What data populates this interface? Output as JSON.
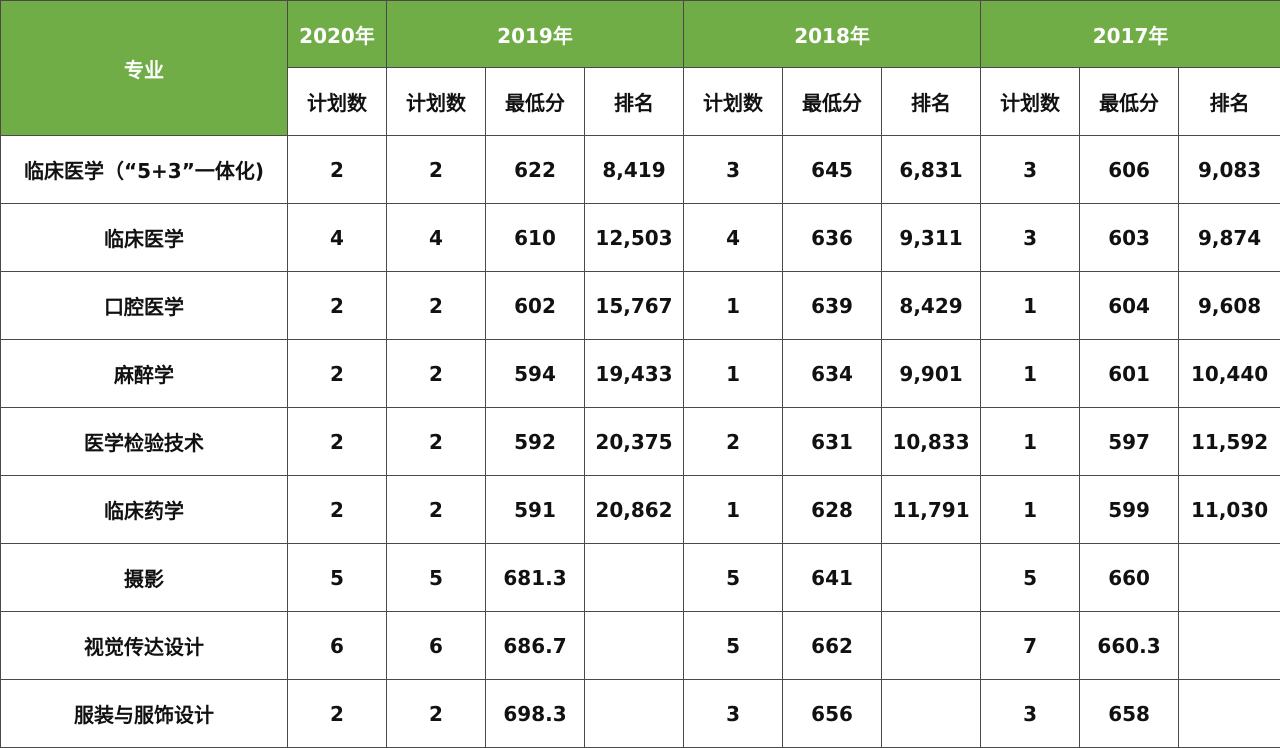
{
  "table": {
    "header_major": "专业",
    "years": [
      "2020年",
      "2019年",
      "2018年",
      "2017年"
    ],
    "sub_headers": {
      "plan": "计划数",
      "min_score": "最低分",
      "rank": "排名"
    },
    "rows": [
      [
        "临床医学（“5+3”一体化)",
        "2",
        "2",
        "622",
        "8,419",
        "3",
        "645",
        "6,831",
        "3",
        "606",
        "9,083"
      ],
      [
        "临床医学",
        "4",
        "4",
        "610",
        "12,503",
        "4",
        "636",
        "9,311",
        "3",
        "603",
        "9,874"
      ],
      [
        "口腔医学",
        "2",
        "2",
        "602",
        "15,767",
        "1",
        "639",
        "8,429",
        "1",
        "604",
        "9,608"
      ],
      [
        "麻醉学",
        "2",
        "2",
        "594",
        "19,433",
        "1",
        "634",
        "9,901",
        "1",
        "601",
        "10,440"
      ],
      [
        "医学检验技术",
        "2",
        "2",
        "592",
        "20,375",
        "2",
        "631",
        "10,833",
        "1",
        "597",
        "11,592"
      ],
      [
        "临床药学",
        "2",
        "2",
        "591",
        "20,862",
        "1",
        "628",
        "11,791",
        "1",
        "599",
        "11,030"
      ],
      [
        "摄影",
        "5",
        "5",
        "681.3",
        "",
        "5",
        "641",
        "",
        "5",
        "660",
        ""
      ],
      [
        "视觉传达设计",
        "6",
        "6",
        "686.7",
        "",
        "5",
        "662",
        "",
        "7",
        "660.3",
        ""
      ],
      [
        "服装与服饰设计",
        "2",
        "2",
        "698.3",
        "",
        "3",
        "656",
        "",
        "3",
        "658",
        ""
      ]
    ]
  },
  "colors": {
    "header_green": "#70ad47",
    "header_text": "#ffffff",
    "border": "#4a4a4a"
  }
}
